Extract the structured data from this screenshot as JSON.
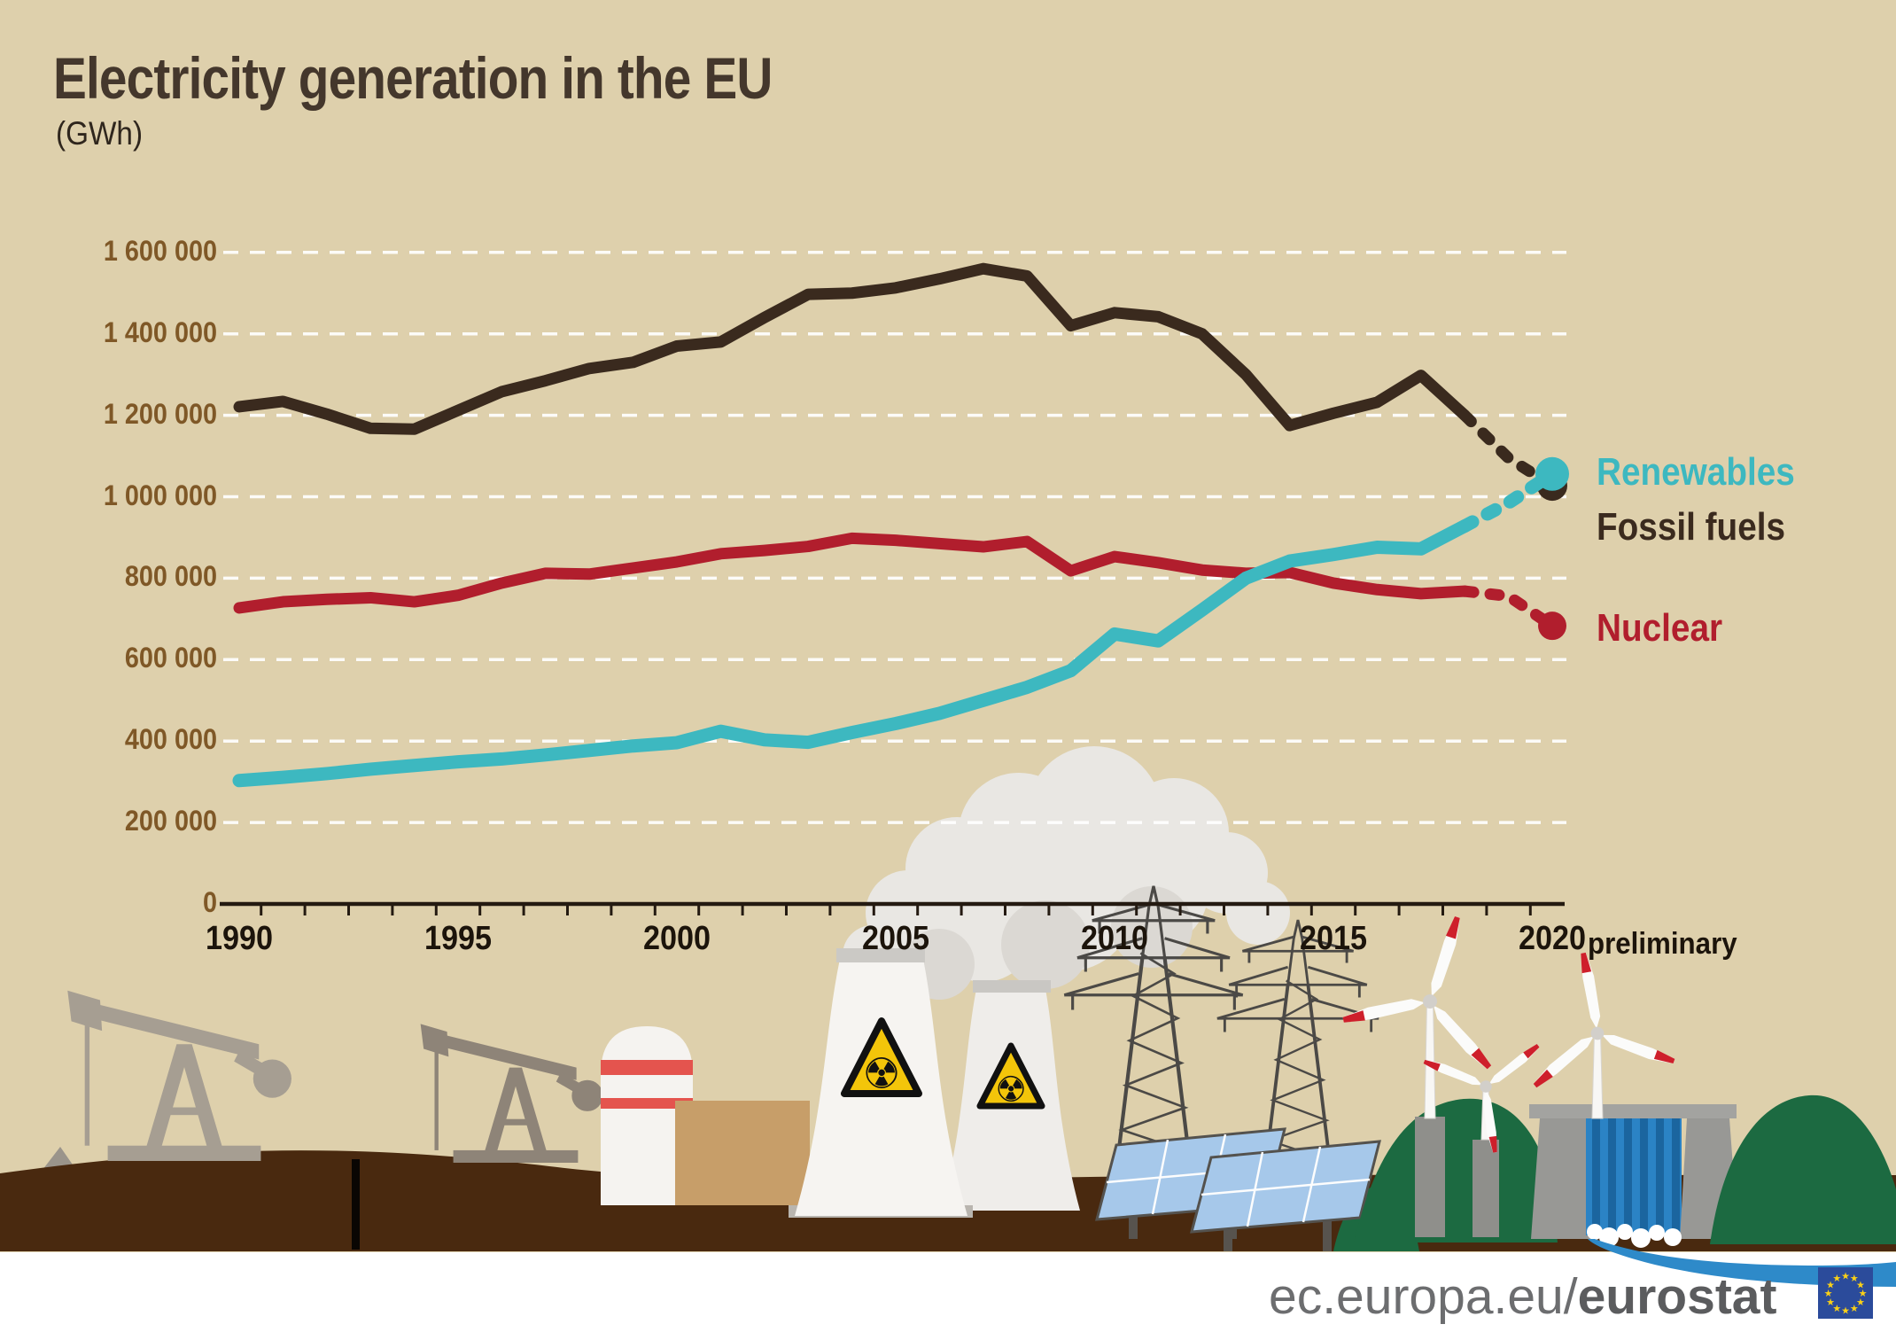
{
  "title": "Electricity generation in the EU",
  "subtitle": "(GWh)",
  "y_axis": {
    "ticks": [
      {
        "label": "1 600 000",
        "value": 1600000
      },
      {
        "label": "1 400 000",
        "value": 1400000
      },
      {
        "label": "1 200 000",
        "value": 1200000
      },
      {
        "label": "1 000 000",
        "value": 1000000
      },
      {
        "label": "800 000",
        "value": 800000
      },
      {
        "label": "600 000",
        "value": 600000
      },
      {
        "label": "400 000",
        "value": 400000
      },
      {
        "label": "200 000",
        "value": 200000
      },
      {
        "label": "0",
        "value": 0
      }
    ]
  },
  "x_axis": {
    "ticks": [
      {
        "label": "1990",
        "year": 1990
      },
      {
        "label": "1995",
        "year": 1995
      },
      {
        "label": "2000",
        "year": 2000
      },
      {
        "label": "2005",
        "year": 2005
      },
      {
        "label": "2010",
        "year": 2010
      },
      {
        "label": "2015",
        "year": 2015
      },
      {
        "label": "2020",
        "year": 2020
      }
    ],
    "note": "preliminary"
  },
  "legend": {
    "renewables": "Renewables",
    "fossil": "Fossil fuels",
    "nuclear": "Nuclear"
  },
  "chart_data": {
    "type": "line",
    "title": "Electricity generation in the EU",
    "ylabel": "GWh",
    "unit": "GWh",
    "ylim": [
      0,
      1700000
    ],
    "grid": "horizontal-dashed-white",
    "x": [
      1990,
      1991,
      1992,
      1993,
      1994,
      1995,
      1996,
      1997,
      1998,
      1999,
      2000,
      2001,
      2002,
      2003,
      2004,
      2005,
      2006,
      2007,
      2008,
      2009,
      2010,
      2011,
      2012,
      2013,
      2014,
      2015,
      2016,
      2017,
      2018,
      2019,
      2020
    ],
    "last_year_note": "2020 preliminary",
    "series": [
      {
        "id": "fossil",
        "name": "Fossil fuels",
        "color": "#3a2a1e",
        "values": [
          1221000,
          1234000,
          1203000,
          1168000,
          1166000,
          1212000,
          1258000,
          1285000,
          1315000,
          1330000,
          1370000,
          1380000,
          1440000,
          1497000,
          1500000,
          1513000,
          1535000,
          1560000,
          1542000,
          1420000,
          1452000,
          1442000,
          1400000,
          1300000,
          1175000,
          1205000,
          1232000,
          1298000,
          1200000,
          1095000,
          1027000
        ]
      },
      {
        "id": "nuclear",
        "name": "Nuclear",
        "color": "#b11e2d",
        "values": [
          727000,
          742000,
          748000,
          752000,
          742000,
          758000,
          788000,
          812000,
          810000,
          825000,
          840000,
          860000,
          868000,
          878000,
          898000,
          893000,
          885000,
          877000,
          890000,
          818000,
          853000,
          838000,
          820000,
          812000,
          814000,
          788000,
          772000,
          762000,
          768000,
          756000,
          683000
        ]
      },
      {
        "id": "renewables",
        "name": "Renewables",
        "color": "#3db8c0",
        "values": [
          303000,
          311000,
          320000,
          331000,
          340000,
          349000,
          356000,
          366000,
          377000,
          388000,
          396000,
          424000,
          403000,
          397000,
          421000,
          443000,
          468000,
          500000,
          532000,
          573000,
          663000,
          646000,
          722000,
          800000,
          842000,
          858000,
          876000,
          872000,
          928000,
          985000,
          1056000
        ]
      }
    ]
  },
  "icons": {
    "radiation": "☢",
    "star": "★"
  },
  "footer": {
    "url_regular": "ec.europa.eu/",
    "url_bold": "eurostat"
  },
  "colors": {
    "background": "#ded0ac",
    "axis": "#241a11",
    "axis_label_brown": "#7f5827",
    "gridline": "#ffffff",
    "ground": "#49290f",
    "hill_green": "#1c6a41",
    "water_blue": "#2e8ac9",
    "flag_blue": "#2b4b9b",
    "flag_star_yellow": "#fbd116"
  }
}
